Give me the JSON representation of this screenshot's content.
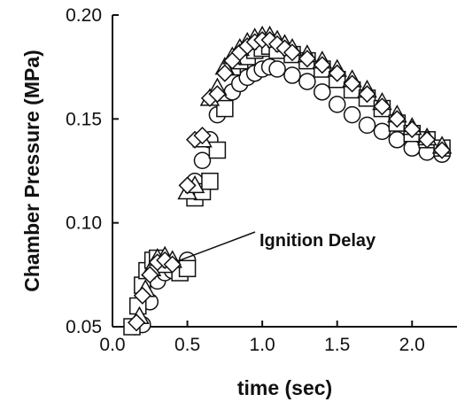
{
  "chart_data": {
    "type": "scatter",
    "title": "",
    "xlabel": "time (sec)",
    "ylabel": "Chamber Pressure (MPa)",
    "xlim": [
      0.0,
      2.3
    ],
    "ylim": [
      0.05,
      0.2
    ],
    "x_ticks": [
      "0.0",
      "0.5",
      "1.0",
      "1.5",
      "2.0"
    ],
    "y_ticks": [
      "0.05",
      "0.10",
      "0.15",
      "0.20"
    ],
    "grid": false,
    "annotation": {
      "text": "Ignition Delay",
      "x": 0.45,
      "y": 0.082
    },
    "series": [
      {
        "marker": "circle",
        "x": [
          0.15,
          0.2,
          0.25,
          0.3,
          0.35,
          0.4,
          0.45,
          0.5,
          0.55,
          0.6,
          0.65,
          0.7,
          0.75,
          0.8,
          0.85,
          0.9,
          0.95,
          1.0,
          1.05,
          1.1,
          1.2,
          1.3,
          1.4,
          1.5,
          1.6,
          1.7,
          1.8,
          1.9,
          2.0,
          2.1,
          2.2
        ],
        "y": [
          0.05,
          0.051,
          0.062,
          0.072,
          0.076,
          0.077,
          0.078,
          0.082,
          0.12,
          0.13,
          0.14,
          0.152,
          0.16,
          0.163,
          0.167,
          0.17,
          0.172,
          0.174,
          0.175,
          0.174,
          0.171,
          0.168,
          0.163,
          0.157,
          0.152,
          0.147,
          0.144,
          0.14,
          0.136,
          0.134,
          0.133
        ]
      },
      {
        "marker": "square",
        "x": [
          0.13,
          0.17,
          0.2,
          0.23,
          0.27,
          0.3,
          0.35,
          0.45,
          0.5,
          0.55,
          0.6,
          0.65,
          0.7,
          0.75,
          0.8,
          0.85,
          0.9,
          0.95,
          1.0,
          1.05,
          1.1,
          1.2,
          1.3,
          1.4,
          1.5,
          1.6,
          1.7,
          1.8,
          1.9,
          2.0,
          2.1,
          2.2
        ],
        "y": [
          0.05,
          0.06,
          0.07,
          0.077,
          0.082,
          0.083,
          0.08,
          0.076,
          0.078,
          0.112,
          0.115,
          0.12,
          0.135,
          0.155,
          0.175,
          0.178,
          0.18,
          0.183,
          0.184,
          0.185,
          0.183,
          0.181,
          0.178,
          0.174,
          0.169,
          0.164,
          0.16,
          0.155,
          0.148,
          0.143,
          0.14,
          0.136
        ]
      },
      {
        "marker": "triangle",
        "x": [
          0.18,
          0.22,
          0.26,
          0.3,
          0.35,
          0.4,
          0.5,
          0.55,
          0.6,
          0.65,
          0.7,
          0.75,
          0.8,
          0.85,
          0.9,
          0.95,
          1.0,
          1.05,
          1.1,
          1.15,
          1.2,
          1.3,
          1.4,
          1.5,
          1.6,
          1.7,
          1.8,
          1.9,
          2.0,
          2.1,
          2.2
        ],
        "y": [
          0.055,
          0.068,
          0.078,
          0.083,
          0.084,
          0.082,
          0.115,
          0.118,
          0.14,
          0.16,
          0.165,
          0.175,
          0.18,
          0.184,
          0.187,
          0.189,
          0.19,
          0.19,
          0.188,
          0.186,
          0.184,
          0.181,
          0.178,
          0.174,
          0.169,
          0.164,
          0.158,
          0.152,
          0.146,
          0.141,
          0.137
        ]
      },
      {
        "marker": "diamond",
        "x": [
          0.16,
          0.2,
          0.25,
          0.3,
          0.35,
          0.4,
          0.5,
          0.55,
          0.6,
          0.65,
          0.7,
          0.75,
          0.8,
          0.85,
          0.9,
          0.95,
          1.0,
          1.05,
          1.1,
          1.15,
          1.2,
          1.3,
          1.4,
          1.5,
          1.6,
          1.7,
          1.8,
          1.9,
          2.0,
          2.1,
          2.2
        ],
        "y": [
          0.052,
          0.065,
          0.075,
          0.081,
          0.082,
          0.08,
          0.118,
          0.14,
          0.142,
          0.16,
          0.162,
          0.172,
          0.178,
          0.182,
          0.185,
          0.187,
          0.188,
          0.188,
          0.186,
          0.184,
          0.182,
          0.179,
          0.176,
          0.172,
          0.167,
          0.162,
          0.156,
          0.15,
          0.145,
          0.14,
          0.135
        ]
      }
    ]
  }
}
